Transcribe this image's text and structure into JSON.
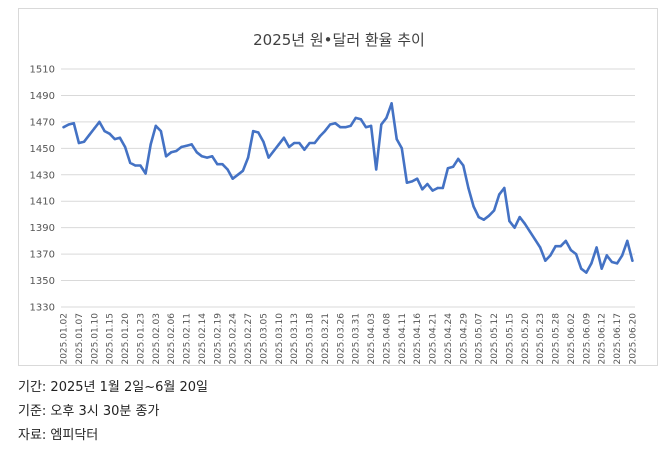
{
  "chart_data": {
    "type": "line",
    "title": "2025년 원•달러 환율 추이",
    "xlabel": "",
    "ylabel": "",
    "ylim": [
      1330,
      1510
    ],
    "yticks": [
      1510,
      1490,
      1470,
      1450,
      1430,
      1410,
      1390,
      1370,
      1350,
      1330
    ],
    "grid": true,
    "legend": "none",
    "color": "#4472c4",
    "x_tick_labels": [
      "2025.01.02",
      "2025.01.07",
      "2025.01.10",
      "2025.01.15",
      "2025.01.20",
      "2025.01.23",
      "2025.02.03",
      "2025.02.06",
      "2025.02.11",
      "2025.02.14",
      "2025.02.19",
      "2025.02.24",
      "2025.02.27",
      "2025.03.05",
      "2025.03.10",
      "2025.03.13",
      "2025.03.18",
      "2025.03.21",
      "2025.03.26",
      "2025.03.31",
      "2025.04.03",
      "2025.04.08",
      "2025.04.11",
      "2025.04.16",
      "2025.04.21",
      "2025.04.24",
      "2025.04.29",
      "2025.05.07",
      "2025.05.12",
      "2025.05.15",
      "2025.05.20",
      "2025.05.23",
      "2025.05.28",
      "2025.06.02",
      "2025.06.09",
      "2025.06.12",
      "2025.06.17",
      "2025.06.20"
    ],
    "values": [
      1466,
      1468,
      1469,
      1454,
      1455,
      1460,
      1465,
      1470,
      1463,
      1461,
      1457,
      1458,
      1451,
      1439,
      1437,
      1437,
      1431,
      1453,
      1467,
      1463,
      1444,
      1447,
      1448,
      1451,
      1452,
      1453,
      1447,
      1444,
      1443,
      1444,
      1438,
      1438,
      1434,
      1427,
      1430,
      1433,
      1443,
      1463,
      1462,
      1455,
      1443,
      1448,
      1453,
      1458,
      1451,
      1454,
      1454,
      1449,
      1454,
      1454,
      1459,
      1463,
      1468,
      1469,
      1466,
      1466,
      1467,
      1473,
      1472,
      1466,
      1467,
      1434,
      1468,
      1473,
      1484,
      1457,
      1450,
      1424,
      1425,
      1427,
      1419,
      1423,
      1418,
      1420,
      1420,
      1435,
      1436,
      1442,
      1437,
      1420,
      1406,
      1398,
      1396,
      1399,
      1403,
      1415,
      1420,
      1395,
      1390,
      1398,
      1393,
      1387,
      1381,
      1375,
      1365,
      1369,
      1376,
      1376,
      1380,
      1373,
      1370,
      1359,
      1356,
      1363,
      1375,
      1359,
      1369,
      1364,
      1363,
      1369,
      1380,
      1365
    ]
  },
  "notes": {
    "period": "기간: 2025년 1월 2일~6월 20일",
    "basis": "기준: 오후 3시 30분 종가",
    "source": "자료: 엠피닥터"
  }
}
